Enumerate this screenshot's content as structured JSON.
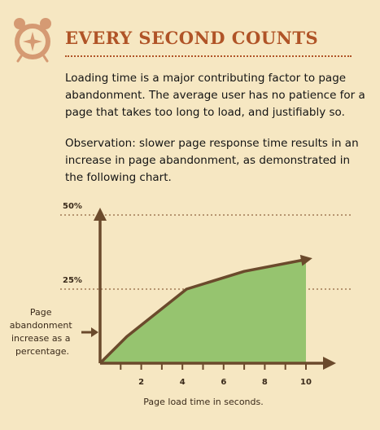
{
  "header": {
    "title": "EVERY SECOND COUNTS",
    "icon": "alarm-clock-icon"
  },
  "paragraphs": [
    "Loading time is a major contributing factor to page abandonment. The average user has no patience for a page that takes too long to load, and justifiably so.",
    "Observation: slower page response time results in an increase in page abandonment, as demonstrated in the following chart."
  ],
  "colors": {
    "accent": "#b05427",
    "background": "#f6e7c2",
    "fill": "#96c46f",
    "axis": "#6b4a2c"
  },
  "chart_data": {
    "type": "area",
    "x": [
      0,
      1.3,
      4.2,
      7,
      10
    ],
    "values": [
      0,
      9,
      25,
      31,
      35
    ],
    "xlabel": "Page load time in seconds.",
    "ylabel": "Page abandonment increase as a percentage.",
    "x_ticks": [
      2,
      4,
      6,
      8,
      10
    ],
    "y_ticks": [
      {
        "value": 25,
        "label": "25%"
      },
      {
        "value": 50,
        "label": "50%"
      }
    ],
    "xlim": [
      0,
      10
    ],
    "ylim": [
      0,
      50
    ],
    "grid": "dotted lines at 25% and 50%"
  }
}
